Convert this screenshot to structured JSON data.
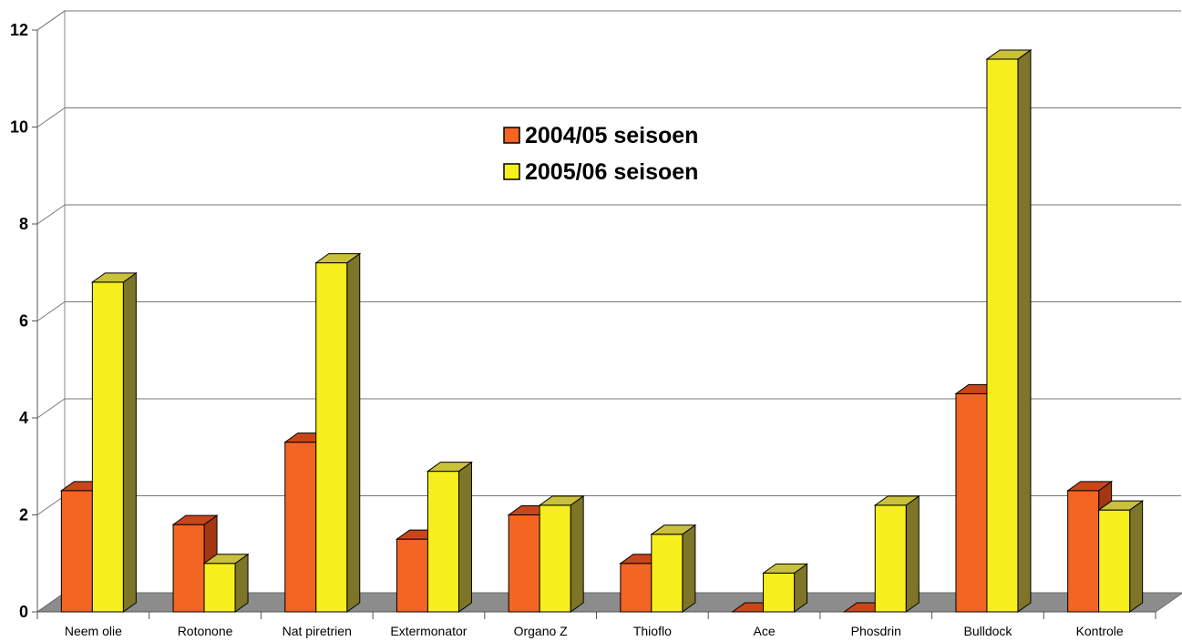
{
  "chart_data": {
    "type": "bar",
    "title": "",
    "xlabel": "",
    "ylabel": "",
    "ylim": [
      0,
      12
    ],
    "yticks": [
      "0",
      "2",
      "4",
      "6",
      "8",
      "10",
      "12"
    ],
    "grid": true,
    "legend_position": "top-center",
    "categories": [
      "Neem olie",
      "Rotonone",
      "Nat piretrien",
      "Extermonator",
      "Organo Z",
      "Thioflo",
      "Ace",
      "Phosdrin",
      "Bulldock",
      "Kontrole"
    ],
    "series": [
      {
        "name": "2004/05 seisoen",
        "color": "#f26522",
        "side_color": "#a33712",
        "top_color": "#c9461a",
        "values": [
          2.5,
          1.8,
          3.5,
          1.5,
          2.0,
          1.0,
          0,
          0,
          4.5,
          2.5
        ]
      },
      {
        "name": "2005/06 seisoen",
        "color": "#f7ee1d",
        "side_color": "#7d7527",
        "top_color": "#c9c13a",
        "values": [
          6.8,
          1.0,
          7.2,
          2.9,
          2.2,
          1.6,
          0.8,
          2.2,
          11.4,
          2.1
        ]
      }
    ]
  }
}
